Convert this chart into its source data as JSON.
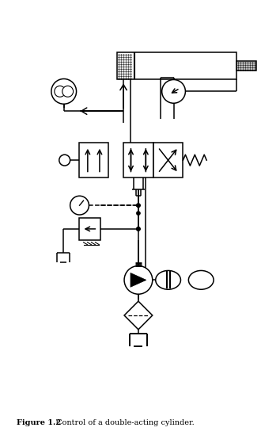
{
  "title_bold": "Figure 1.2",
  "title_normal": " Control of a double-acting cylinder.",
  "bg_color": "#ffffff",
  "figsize": [
    3.3,
    5.54
  ],
  "dpi": 100
}
